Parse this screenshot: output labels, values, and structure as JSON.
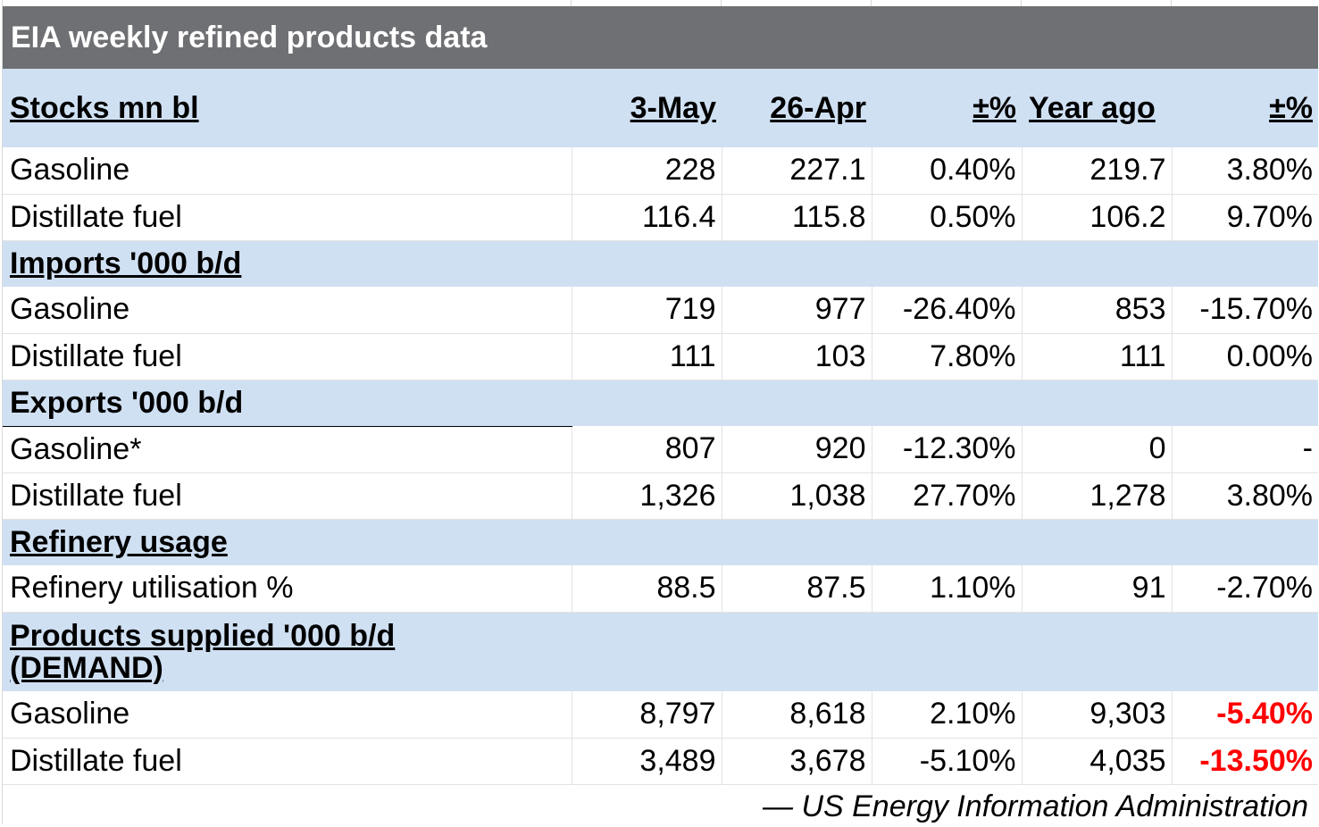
{
  "title": "EIA weekly refined products data",
  "header": {
    "label": "Stocks mn bl",
    "col1": "3-May",
    "col2": "26-Apr",
    "col3": "±%",
    "col4": "Year ago",
    "col5": "±%"
  },
  "stocks": [
    {
      "label": "Gasoline",
      "v1": "228",
      "v2": "227.1",
      "v3": "0.40%",
      "v4": "219.7",
      "v5": "3.80%"
    },
    {
      "label": "Distillate fuel",
      "v1": "116.4",
      "v2": "115.8",
      "v3": "0.50%",
      "v4": "106.2",
      "v5": "9.70%"
    }
  ],
  "imports_title": "Imports '000 b/d",
  "imports": [
    {
      "label": "Gasoline",
      "v1": "719",
      "v2": "977",
      "v3": "-26.40%",
      "v4": "853",
      "v5": "-15.70%"
    },
    {
      "label": "Distillate fuel",
      "v1": "111",
      "v2": "103",
      "v3": "7.80%",
      "v4": "111",
      "v5": "0.00%"
    }
  ],
  "exports_title": "Exports '000 b/d",
  "exports": [
    {
      "label": "Gasoline*",
      "v1": "807",
      "v2": "920",
      "v3": "-12.30%",
      "v4": "0",
      "v5": "-"
    },
    {
      "label": "Distillate fuel",
      "v1": "1,326",
      "v2": "1,038",
      "v3": "27.70%",
      "v4": "1,278",
      "v5": "3.80%"
    }
  ],
  "refinery_title": "Refinery usage",
  "refinery": [
    {
      "label": "Refinery utilisation %",
      "v1": "88.5",
      "v2": "87.5",
      "v3": "1.10%",
      "v4": "91",
      "v5": "-2.70%"
    }
  ],
  "demand_title_line1": "Products supplied '000 b/d",
  "demand_title_line2": "(DEMAND)",
  "demand": [
    {
      "label": "Gasoline",
      "v1": "8,797",
      "v2": "8,618",
      "v3": "2.10%",
      "v4": "9,303",
      "v5": "-5.40%"
    },
    {
      "label": "Distillate fuel",
      "v1": "3,489",
      "v2": "3,678",
      "v3": "-5.10%",
      "v4": "4,035",
      "v5": "-13.50%"
    }
  ],
  "source": "— US Energy Information Administration",
  "colors": {
    "title_bg": "#6f7073",
    "section_bg": "#d0e0f3",
    "highlight_negative": "#ff0000"
  }
}
